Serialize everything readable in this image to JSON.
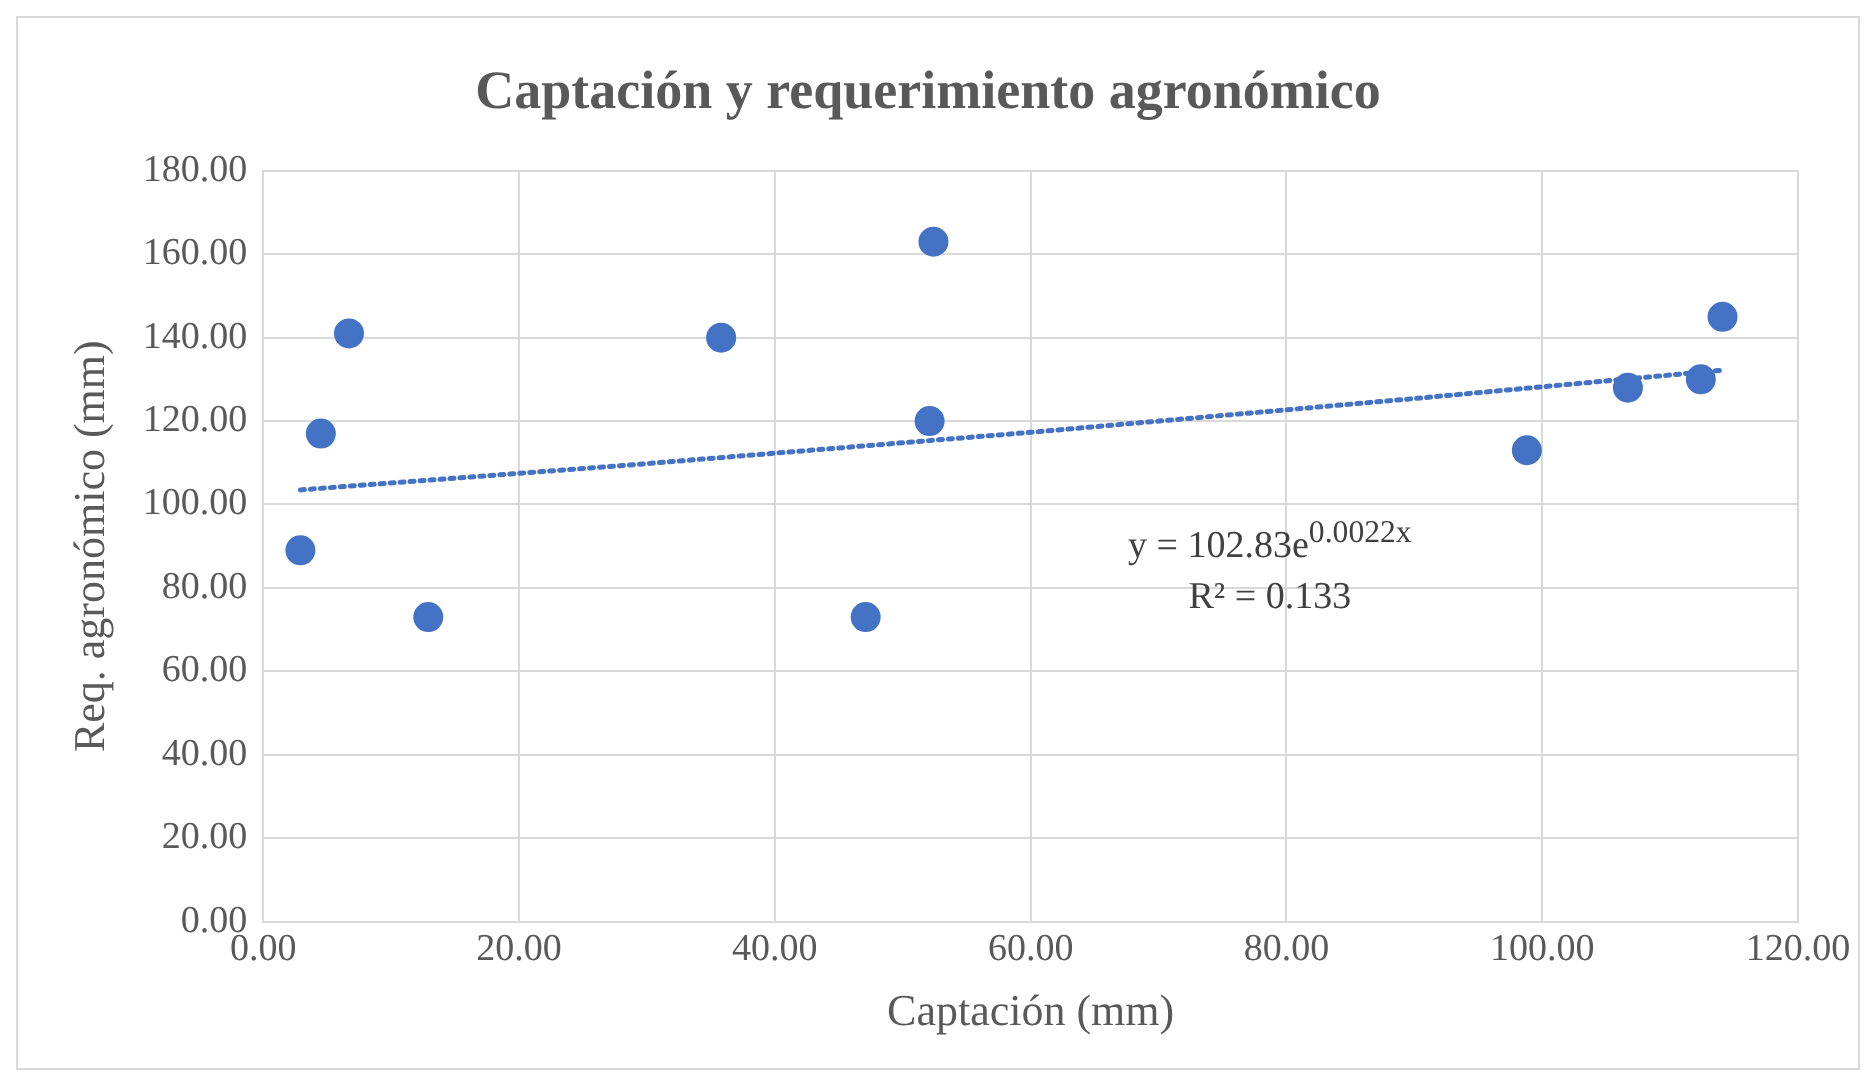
{
  "chart_data": {
    "type": "scatter",
    "title": "Captación y requerimiento agronómico",
    "xlabel": "Captación (mm)",
    "ylabel": "Req. agronómico (mm)",
    "xlim": [
      0,
      120
    ],
    "xticks": [
      {
        "value": 0,
        "label": "0.00"
      },
      {
        "value": 20,
        "label": "20.00"
      },
      {
        "value": 40,
        "label": "40.00"
      },
      {
        "value": 60,
        "label": "60.00"
      },
      {
        "value": 80,
        "label": "80.00"
      },
      {
        "value": 100,
        "label": "100.00"
      },
      {
        "value": 120,
        "label": "120.00"
      }
    ],
    "ylim": [
      0,
      180
    ],
    "yticks": [
      {
        "value": 0,
        "label": "0.00"
      },
      {
        "value": 20,
        "label": "20.00"
      },
      {
        "value": 40,
        "label": "40.00"
      },
      {
        "value": 60,
        "label": "60.00"
      },
      {
        "value": 80,
        "label": "80.00"
      },
      {
        "value": 100,
        "label": "100.00"
      },
      {
        "value": 120,
        "label": "120.00"
      },
      {
        "value": 140,
        "label": "140.00"
      },
      {
        "value": 160,
        "label": "160.00"
      },
      {
        "value": 180,
        "label": "180.00"
      }
    ],
    "grid": true,
    "marker": "circle",
    "series": [
      {
        "color": "#4472c4",
        "x": [
          2.9,
          4.5,
          6.7,
          12.9,
          35.8,
          47.1,
          52.1,
          52.4,
          98.8,
          106.7,
          112.4,
          114.1
        ],
        "values": [
          89,
          117,
          141,
          73,
          140,
          73,
          120,
          163,
          113,
          128,
          130,
          145
        ]
      },
      {
        "type": "line",
        "color": "#4472c4",
        "line_style": "dotted",
        "marker": "none",
        "x": [
          2.9,
          30,
          60,
          90,
          114.1
        ],
        "values": [
          103.5,
          109.8,
          117.3,
          125.4,
          132.2
        ]
      }
    ],
    "annotations": [
      "y = 102.83e$^{0.0022x}$",
      "R² = 0.133"
    ]
  }
}
